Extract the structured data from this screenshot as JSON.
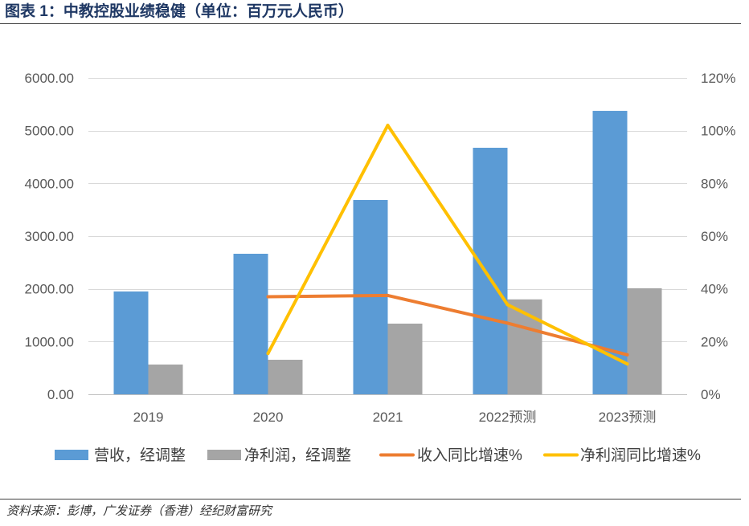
{
  "chart_data": {
    "type": "bar",
    "title": "图表 1：中教控股业绩稳健（单位：百万元人民币）",
    "categories": [
      "2019",
      "2020",
      "2021",
      "2022预测",
      "2023预测"
    ],
    "y_left": {
      "lim": [
        0,
        6000
      ],
      "ticks": [
        0,
        1000,
        2000,
        3000,
        4000,
        5000,
        6000
      ],
      "tick_labels": [
        "0.00",
        "1000.00",
        "2000.00",
        "3000.00",
        "4000.00",
        "5000.00",
        "6000.00"
      ]
    },
    "y_right": {
      "lim": [
        0,
        120
      ],
      "ticks": [
        0,
        20,
        40,
        60,
        80,
        100,
        120
      ],
      "tick_labels": [
        "0%",
        "20%",
        "40%",
        "60%",
        "80%",
        "100%",
        "120%"
      ]
    },
    "grid": true,
    "series": [
      {
        "name": "营收，经调整",
        "type": "bar",
        "color": "#5B9BD5",
        "values": [
          1950,
          2665,
          3685,
          4675,
          5375
        ]
      },
      {
        "name": "净利润，经调整",
        "type": "bar",
        "color": "#A5A5A5",
        "values": [
          565,
          655,
          1340,
          1800,
          2010
        ]
      },
      {
        "name": "收入同比增速%",
        "type": "line",
        "color": "#ED7D31",
        "values": [
          null,
          37,
          37.5,
          27,
          15
        ]
      },
      {
        "name": "净利润同比增速%",
        "type": "line",
        "color": "#FFC000",
        "values": [
          null,
          15.5,
          102,
          34,
          11.5
        ]
      }
    ]
  },
  "footer": {
    "source": "资料来源：彭博，广发证券（香港）经纪财富研究"
  },
  "colors": {
    "title": "#1F3864",
    "gridline": "#D9D9D9",
    "axis_text": "#595959"
  }
}
